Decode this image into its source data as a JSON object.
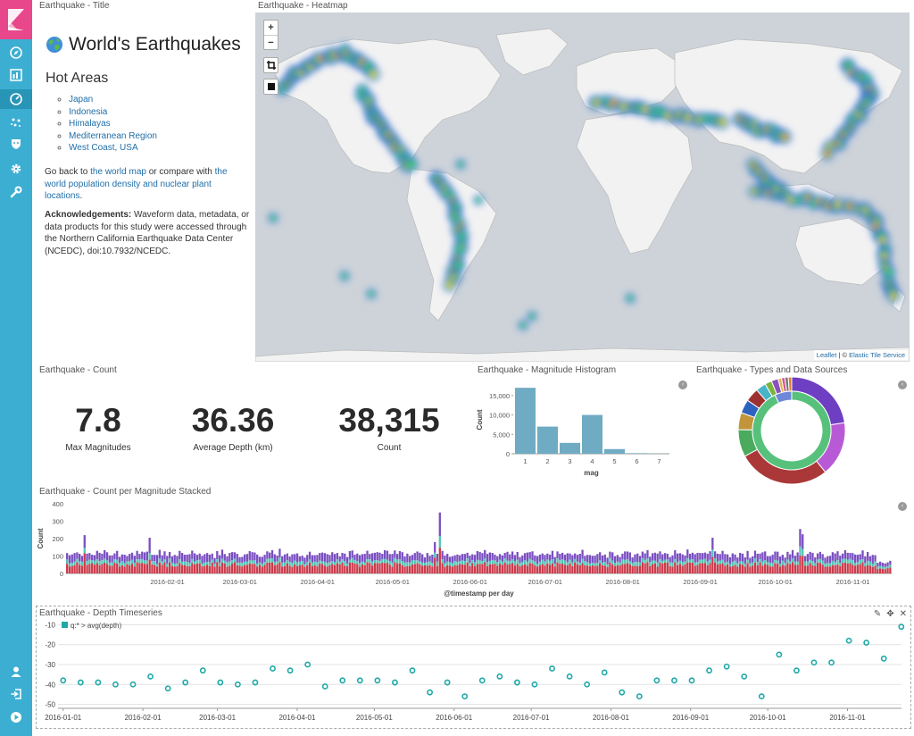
{
  "sidebar": {
    "items": [
      {
        "name": "discover",
        "icon": "compass-icon"
      },
      {
        "name": "visualize",
        "icon": "bar-chart-icon"
      },
      {
        "name": "dashboard",
        "icon": "dashboard-icon",
        "active": true
      },
      {
        "name": "timelion",
        "icon": "timelion-icon"
      },
      {
        "name": "security",
        "icon": "shield-icon"
      },
      {
        "name": "management",
        "icon": "gear-icon"
      },
      {
        "name": "dev-tools",
        "icon": "wrench-icon"
      }
    ],
    "bottom_items": [
      {
        "name": "user",
        "icon": "user-icon"
      },
      {
        "name": "logout",
        "icon": "logout-icon"
      },
      {
        "name": "collapse",
        "icon": "play-circle-icon"
      }
    ]
  },
  "title_panel": {
    "panel_title": "Earthquake - Title",
    "heading": "World's Earthquakes",
    "subheading": "Hot Areas",
    "hot_areas": [
      "Japan",
      "Indonesia",
      "Himalayas",
      "Mediterranean Region",
      "West Coast, USA"
    ],
    "para1_pre": "Go back to ",
    "para1_link1": "the world map",
    "para1_mid": " or compare with ",
    "para1_link2": "the world population density and nuclear plant locations",
    "para1_post": ".",
    "ack_label": "Acknowledgements:",
    "ack_text": " Waveform data, metadata, or data products for this study were accessed through the Northern California Earthquake Data Center (NCEDC), doi:10.7932/NCEDC."
  },
  "map_panel": {
    "panel_title": "Earthquake - Heatmap",
    "zoom_in": "+",
    "zoom_out": "−",
    "attribution_link": "Leaflet",
    "attribution_sep": " | © ",
    "attribution_service": "Elastic Tile Service"
  },
  "count_panel": {
    "panel_title": "Earthquake - Count",
    "metrics": [
      {
        "value": "7.8",
        "label": "Max Magnitudes"
      },
      {
        "value": "36.36",
        "label": "Average Depth (km)"
      },
      {
        "value": "38,315",
        "label": "Count"
      }
    ]
  },
  "histogram_panel": {
    "panel_title": "Earthquake - Magnitude Histogram"
  },
  "pie_panel": {
    "panel_title": "Earthquake - Types and Data Sources"
  },
  "stacked_panel": {
    "panel_title": "Earthquake - Count per Magnitude Stacked"
  },
  "depth_panel": {
    "panel_title": "Earthquake - Depth Timeseries"
  },
  "colors": {
    "sidebar": "#3caed2",
    "logo": "#e8488b",
    "histogram_bar": "#6fabc2",
    "stack_red": "#cc3b4b",
    "stack_teal": "#54c3b4",
    "stack_purple": "#7a4fc0",
    "depth_point": "#20a8a8"
  },
  "chart_data": [
    {
      "type": "bar",
      "title": "",
      "categories": [
        1,
        2,
        3,
        4,
        5,
        6,
        7
      ],
      "values": [
        17000,
        7000,
        2800,
        10000,
        1200,
        150,
        30
      ],
      "xlabel": "mag",
      "ylabel": "Count",
      "ylim": [
        0,
        17500
      ],
      "yticks": [
        0,
        5000,
        10000,
        15000
      ],
      "ytick_labels": [
        "0",
        "5,000",
        "10,000",
        "15,000"
      ]
    },
    {
      "type": "pie",
      "title": "",
      "inner_ring": [
        {
          "value": 93,
          "color": "#57c17b"
        },
        {
          "value": 7,
          "color": "#6f87d8"
        }
      ],
      "outer_ring": [
        {
          "value": 22,
          "color": "#6e3fc2"
        },
        {
          "value": 16,
          "color": "#b85ad6"
        },
        {
          "value": 27,
          "color": "#aa3838"
        },
        {
          "value": 8,
          "color": "#4aab5e"
        },
        {
          "value": 5,
          "color": "#c2953b"
        },
        {
          "value": 4,
          "color": "#2e62bf"
        },
        {
          "value": 4,
          "color": "#9d3030"
        },
        {
          "value": 3,
          "color": "#47b4c8"
        },
        {
          "value": 2,
          "color": "#7bb33c"
        },
        {
          "value": 2,
          "color": "#8a4fbe"
        },
        {
          "value": 1,
          "color": "#e2b84d"
        },
        {
          "value": 1,
          "color": "#d15790"
        },
        {
          "value": 1,
          "color": "#777777"
        },
        {
          "value": 1,
          "color": "#e07b32"
        }
      ]
    },
    {
      "type": "bar",
      "stacked": true,
      "title": "",
      "xlabel": "@timestamp per day",
      "ylabel": "Count",
      "ylim": [
        0,
        400
      ],
      "yticks": [
        0,
        100,
        200,
        300,
        400
      ],
      "x_start": "2015-12-23",
      "x_end": "2016-11-16",
      "days": 330,
      "xtick_labels": [
        "2016-02-01",
        "2016-03-01",
        "2016-04-01",
        "2016-05-01",
        "2016-06-01",
        "2016-07-01",
        "2016-08-01",
        "2016-09-01",
        "2016-10-01",
        "2016-11-01"
      ],
      "xtick_day_index": [
        40,
        69,
        100,
        130,
        161,
        191,
        222,
        253,
        283,
        314
      ],
      "series": [
        {
          "color": "#cc3b4b",
          "typical": 50
        },
        {
          "color": "#54c3b4",
          "typical": 20
        },
        {
          "color": "#7a4fc0",
          "typical": 40
        }
      ],
      "spikes": [
        {
          "day": 7,
          "total": 220
        },
        {
          "day": 33,
          "total": 205
        },
        {
          "day": 149,
          "total": 350
        },
        {
          "day": 147,
          "total": 180
        },
        {
          "day": 258,
          "total": 205
        },
        {
          "day": 293,
          "total": 255
        },
        {
          "day": 294,
          "total": 225
        }
      ]
    },
    {
      "type": "scatter",
      "title": "",
      "legend": "q:* > avg(depth)",
      "xlabel": "",
      "ylabel": "",
      "ylim": [
        -52,
        -8
      ],
      "yticks": [
        -10,
        -20,
        -30,
        -40,
        -50
      ],
      "xtick_labels": [
        "2016-01-01",
        "2016-02-01",
        "2016-03-01",
        "2016-04-01",
        "2016-05-01",
        "2016-06-01",
        "2016-07-01",
        "2016-08-01",
        "2016-09-01",
        "2016-10-01",
        "2016-11-01"
      ],
      "xtick_day_index": [
        0,
        31,
        60,
        91,
        121,
        152,
        182,
        213,
        244,
        274,
        305
      ],
      "x_day_range": [
        -2,
        326
      ],
      "points": [
        [
          0,
          -38
        ],
        [
          7,
          -39
        ],
        [
          14,
          -39
        ],
        [
          21,
          -40
        ],
        [
          28,
          -40
        ],
        [
          35,
          -36
        ],
        [
          42,
          -42
        ],
        [
          49,
          -39
        ],
        [
          56,
          -33
        ],
        [
          63,
          -39
        ],
        [
          70,
          -40
        ],
        [
          77,
          -39
        ],
        [
          84,
          -32
        ],
        [
          91,
          -33
        ],
        [
          98,
          -30
        ],
        [
          105,
          -41
        ],
        [
          112,
          -38
        ],
        [
          119,
          -38
        ],
        [
          126,
          -38
        ],
        [
          133,
          -39
        ],
        [
          140,
          -33
        ],
        [
          147,
          -44
        ],
        [
          154,
          -39
        ],
        [
          161,
          -46
        ],
        [
          168,
          -38
        ],
        [
          175,
          -36
        ],
        [
          182,
          -39
        ],
        [
          189,
          -40
        ],
        [
          196,
          -32
        ],
        [
          203,
          -36
        ],
        [
          210,
          -40
        ],
        [
          217,
          -34
        ],
        [
          224,
          -44
        ],
        [
          231,
          -46
        ],
        [
          238,
          -38
        ],
        [
          245,
          -38
        ],
        [
          252,
          -38
        ],
        [
          259,
          -33
        ],
        [
          266,
          -31
        ],
        [
          273,
          -36
        ],
        [
          280,
          -46
        ],
        [
          287,
          -25
        ],
        [
          294,
          -33
        ],
        [
          301,
          -29
        ],
        [
          308,
          -29
        ],
        [
          315,
          -18
        ],
        [
          322,
          -19
        ],
        [
          329,
          -27
        ],
        [
          336,
          -11
        ]
      ]
    }
  ]
}
